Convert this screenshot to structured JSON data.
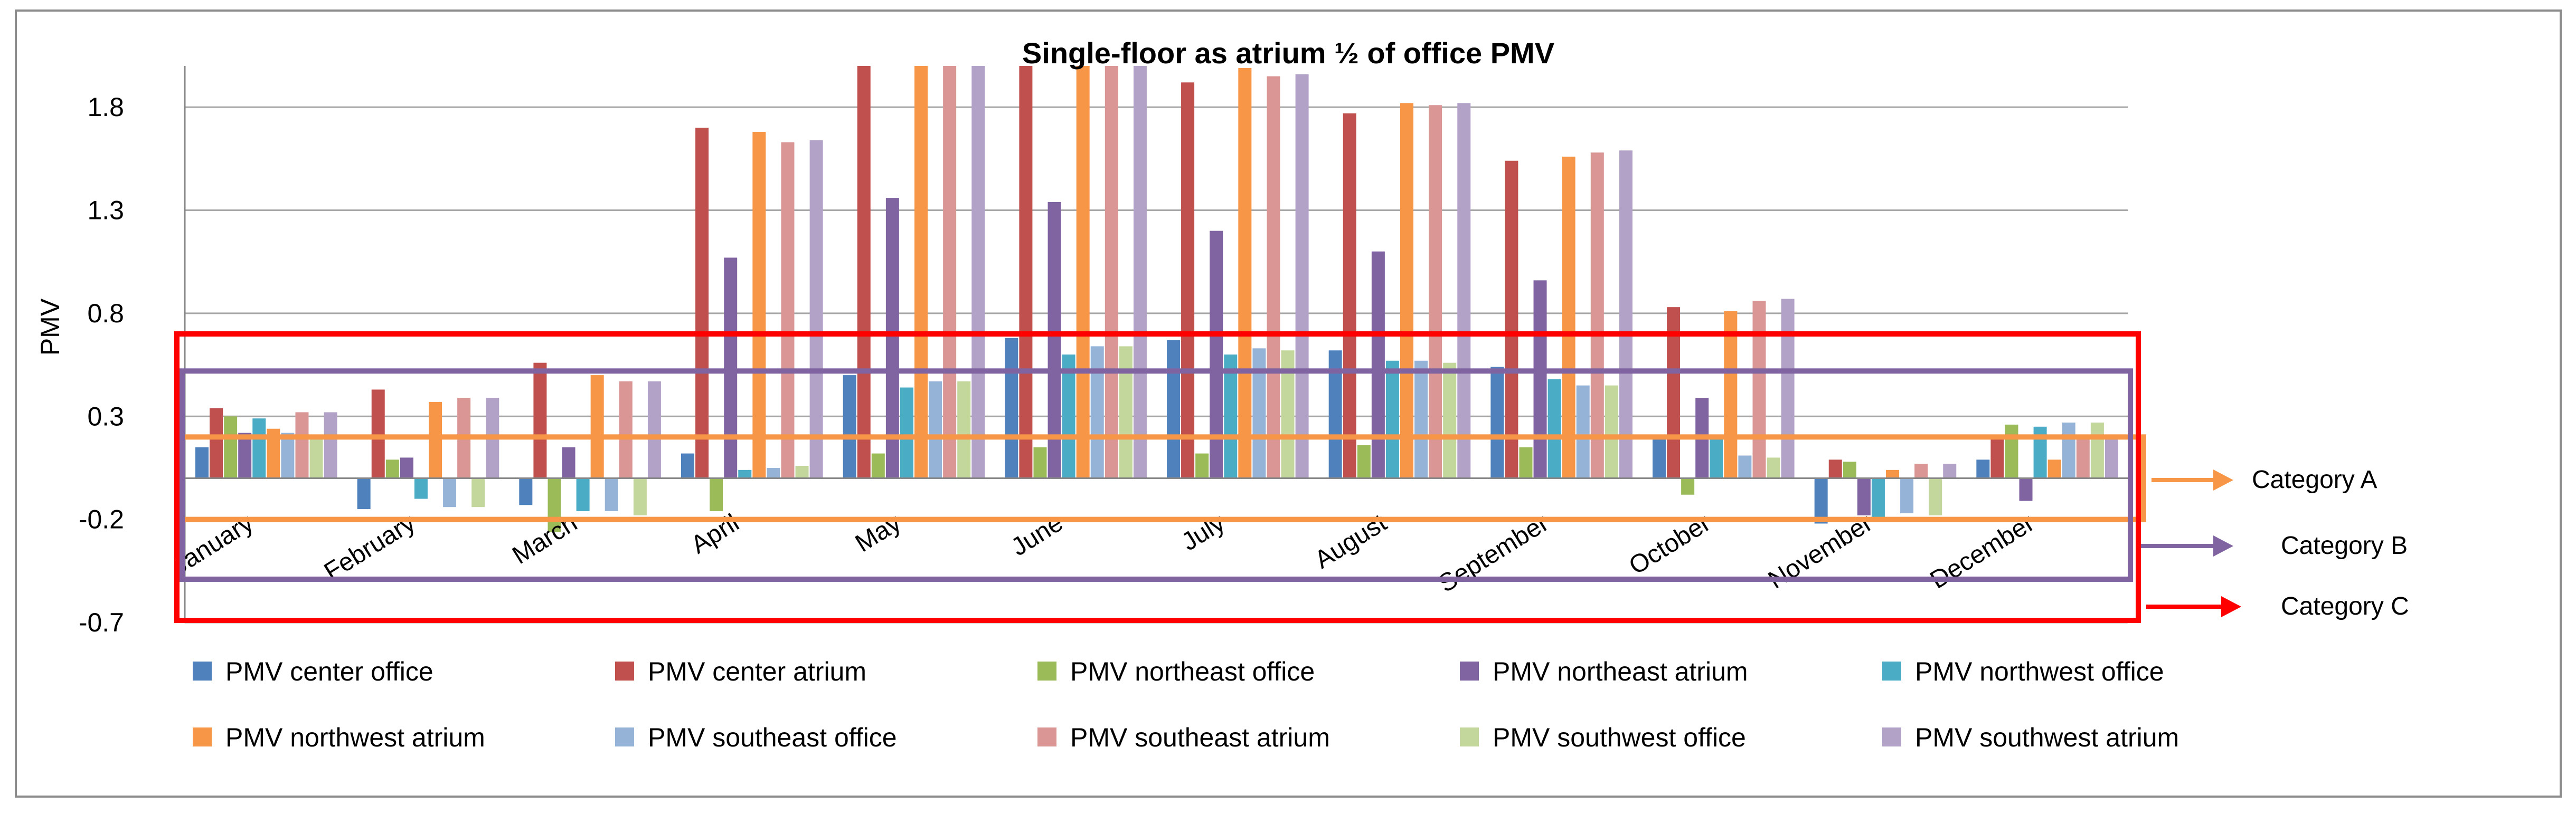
{
  "chart_data": {
    "type": "bar",
    "title": "Single-floor as atrium ½ of office PMV",
    "xlabel": "",
    "ylabel": "PMV",
    "ylim": [
      -0.7,
      2.0
    ],
    "y_ticks": [
      {
        "value": 1.8,
        "label": "1.8"
      },
      {
        "value": 1.3,
        "label": "1.3"
      },
      {
        "value": 0.8,
        "label": "0.8"
      },
      {
        "value": 0.3,
        "label": "0.3"
      },
      {
        "value": -0.2,
        "label": "-0.2"
      },
      {
        "value": -0.7,
        "label": "-0.7"
      }
    ],
    "grid": true,
    "legend_position": "bottom",
    "categories": [
      "January",
      "February",
      "March",
      "April",
      "May",
      "June",
      "July",
      "August",
      "September",
      "October",
      "November",
      "December"
    ],
    "series": [
      {
        "name": "PMV center office",
        "color": "#4f81bd",
        "values": [
          0.15,
          -0.15,
          -0.13,
          0.12,
          0.5,
          0.68,
          0.67,
          0.62,
          0.54,
          0.2,
          -0.22,
          0.09
        ]
      },
      {
        "name": "PMV center atrium",
        "color": "#c0504d",
        "values": [
          0.34,
          0.43,
          0.56,
          1.7,
          2.01,
          2.01,
          1.92,
          1.77,
          1.54,
          0.83,
          0.09,
          0.2
        ]
      },
      {
        "name": "PMV northeast office",
        "color": "#9bbb59",
        "values": [
          0.3,
          0.09,
          -0.26,
          -0.16,
          0.12,
          0.15,
          0.12,
          0.16,
          0.15,
          -0.08,
          0.08,
          0.26
        ]
      },
      {
        "name": "PMV northeast atrium",
        "color": "#8064a2",
        "values": [
          0.22,
          0.1,
          0.15,
          1.07,
          1.36,
          1.34,
          1.2,
          1.1,
          0.96,
          0.39,
          -0.18,
          -0.11
        ]
      },
      {
        "name": "PMV northwest office",
        "color": "#4bacc6",
        "values": [
          0.29,
          -0.1,
          -0.16,
          0.04,
          0.44,
          0.6,
          0.6,
          0.57,
          0.48,
          0.19,
          -0.19,
          0.25
        ]
      },
      {
        "name": "PMV northwest atrium",
        "color": "#f79646",
        "values": [
          0.24,
          0.37,
          0.5,
          1.68,
          2.01,
          2.01,
          1.99,
          1.82,
          1.56,
          0.81,
          0.04,
          0.09
        ]
      },
      {
        "name": "PMV southeast office",
        "color": "#95b3d7",
        "values": [
          0.22,
          -0.14,
          -0.16,
          0.05,
          0.47,
          0.64,
          0.63,
          0.57,
          0.45,
          0.11,
          -0.17,
          0.27
        ]
      },
      {
        "name": "PMV southeast atrium",
        "color": "#d99694",
        "values": [
          0.32,
          0.39,
          0.47,
          1.63,
          2.01,
          2.01,
          1.95,
          1.81,
          1.58,
          0.86,
          0.07,
          0.19
        ]
      },
      {
        "name": "PMV southwest office",
        "color": "#c3d69b",
        "values": [
          0.21,
          -0.14,
          -0.18,
          0.06,
          0.47,
          0.64,
          0.62,
          0.56,
          0.45,
          0.1,
          -0.18,
          0.27
        ]
      },
      {
        "name": "PMV southwest atrium",
        "color": "#b2a2c7",
        "values": [
          0.32,
          0.39,
          0.47,
          1.64,
          2.01,
          2.01,
          1.96,
          1.82,
          1.59,
          0.87,
          0.07,
          0.19
        ]
      }
    ],
    "annotations": [
      {
        "label": "Category A",
        "color": "#f79646",
        "range": [
          -0.2,
          0.2
        ]
      },
      {
        "label": "Category B",
        "color": "#8064a2",
        "range": [
          -0.5,
          0.5
        ]
      },
      {
        "label": "Category C",
        "color": "#ff0000",
        "range": [
          -0.7,
          0.7
        ]
      }
    ]
  }
}
